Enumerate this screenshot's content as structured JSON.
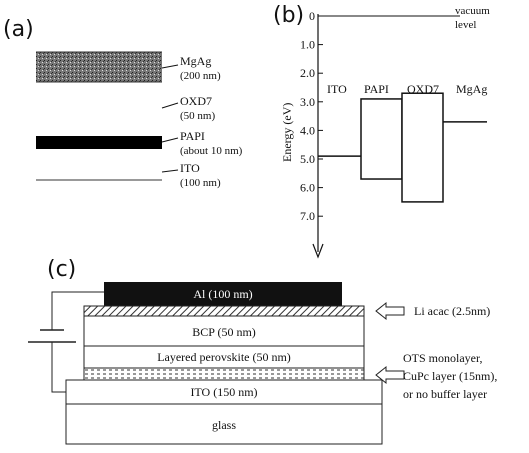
{
  "panels": {
    "a": "(a)",
    "b": "(b)",
    "c": "(c)"
  },
  "a": {
    "mgag": "MgAg",
    "mgag_th": "(200 nm)",
    "oxd7": "OXD7",
    "oxd7_th": "(50 nm)",
    "papi": "PAPI",
    "papi_th": "(about 10 nm)",
    "ito": "ITO",
    "ito_th": "(100 nm)"
  },
  "b": {
    "axis_label": "Energy (eV)",
    "ticks": [
      "0",
      "1.0",
      "2.0",
      "3.0",
      "4.0",
      "5.0",
      "6.0",
      "7.0"
    ],
    "vacuum_line1": "vacuum",
    "vacuum_line2": "level",
    "materials": [
      {
        "name": "ITO",
        "level": 4.9
      },
      {
        "name": "PAPI",
        "lumo": 2.9,
        "homo": 5.7
      },
      {
        "name": "OXD7",
        "lumo": 2.7,
        "homo": 6.5
      },
      {
        "name": "MgAg",
        "level": 3.7
      }
    ]
  },
  "c": {
    "al": "Al (100 nm)",
    "bcp": "BCP (50 nm)",
    "perovskite": "Layered perovskite (50 nm)",
    "ito": "ITO (150 nm)",
    "glass": "glass",
    "li_acac": "Li acac (2.5nm)",
    "buffer_line1": "OTS monolayer,",
    "buffer_line2": "CuPc layer (15nm),",
    "buffer_line3": "or no buffer layer"
  }
}
